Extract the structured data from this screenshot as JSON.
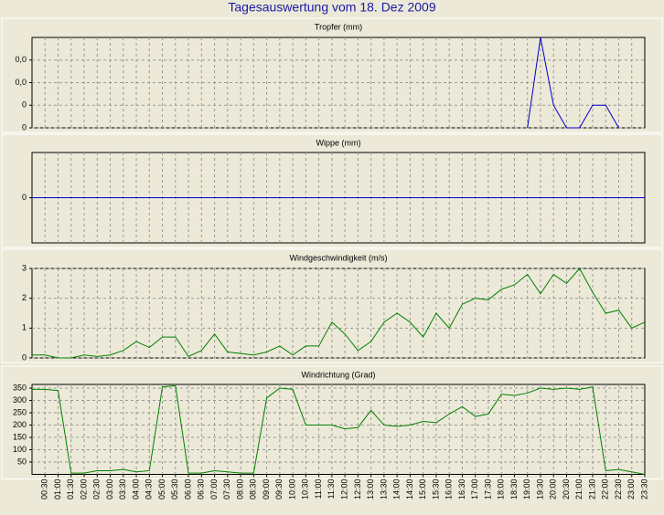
{
  "title": "Tagesauswertung vom 18. Dez 2009",
  "categories": [
    null,
    "00:30",
    "01:00",
    "01:30",
    "02:00",
    "02:30",
    "03:00",
    "03:30",
    "04:00",
    "04:30",
    "05:00",
    "05:30",
    "06:00",
    "06:30",
    "07:00",
    "07:30",
    "08:00",
    "08:30",
    "09:00",
    "09:30",
    "10:00",
    "10:30",
    "11:00",
    "11:30",
    "12:00",
    "12:30",
    "13:00",
    "13:30",
    "14:00",
    "14:30",
    "15:00",
    "15:30",
    "16:00",
    "16:30",
    "17:00",
    "17:30",
    "18:00",
    "18:30",
    "19:00",
    "19:30",
    "20:00",
    "20:30",
    "21:00",
    "21:30",
    "22:00",
    "22:30",
    "23:00",
    "23:30"
  ],
  "chart_data": [
    {
      "type": "line",
      "title": "Tropfer (mm)",
      "color": "#0000cc",
      "grid": true,
      "ylim": [
        0,
        0.04
      ],
      "yticks": [
        {
          "value": 0,
          "label": "0"
        },
        {
          "value": 0.01,
          "label": "0"
        },
        {
          "value": 0.02,
          "label": "0,0"
        },
        {
          "value": 0.03,
          "label": "0,0"
        }
      ],
      "values": [
        null,
        null,
        null,
        null,
        null,
        null,
        null,
        null,
        null,
        null,
        null,
        null,
        null,
        null,
        null,
        null,
        null,
        null,
        null,
        null,
        null,
        null,
        null,
        null,
        null,
        null,
        null,
        null,
        null,
        null,
        null,
        null,
        null,
        null,
        null,
        null,
        null,
        null,
        0,
        0.04,
        0.01,
        0,
        0,
        0.01,
        0.01,
        0,
        null,
        null
      ]
    },
    {
      "type": "line",
      "title": "Wippe (mm)",
      "color": "#0000cc",
      "grid": true,
      "ylim": [
        -1,
        1
      ],
      "yticks": [
        0
      ],
      "values": [
        0,
        0,
        0,
        0,
        0,
        0,
        0,
        0,
        0,
        0,
        0,
        0,
        0,
        0,
        0,
        0,
        0,
        0,
        0,
        0,
        0,
        0,
        0,
        0,
        0,
        0,
        0,
        0,
        0,
        0,
        0,
        0,
        0,
        0,
        0,
        0,
        0,
        0,
        0,
        0,
        0,
        0,
        0,
        0,
        0,
        0,
        0,
        0
      ]
    },
    {
      "type": "line",
      "title": "Windgeschwindigkeit (m/s)",
      "color": "#008000",
      "grid": true,
      "ylim": [
        0,
        3
      ],
      "yticks": [
        0,
        1,
        2,
        3
      ],
      "values": [
        0.1,
        0.1,
        0,
        0,
        0.1,
        0.05,
        0.1,
        0.25,
        0.55,
        0.35,
        0.7,
        0.7,
        0.05,
        0.25,
        0.8,
        0.2,
        0.15,
        0.1,
        0.2,
        0.4,
        0.1,
        0.4,
        0.4,
        1.2,
        0.8,
        0.25,
        0.55,
        1.2,
        1.5,
        1.2,
        0.7,
        1.5,
        1,
        1.8,
        2,
        1.95,
        2.3,
        2.45,
        2.8,
        2.15,
        2.8,
        2.5,
        3,
        2.2,
        1.5,
        1.6,
        1,
        1.2
      ]
    },
    {
      "type": "line",
      "title": "Windrichtung (Grad)",
      "color": "#008000",
      "grid": true,
      "ylim": [
        0,
        365
      ],
      "yticks": [
        50,
        100,
        150,
        200,
        250,
        300,
        350
      ],
      "values": [
        345,
        345,
        340,
        5,
        5,
        15,
        15,
        20,
        10,
        15,
        355,
        360,
        5,
        5,
        15,
        10,
        5,
        5,
        310,
        350,
        345,
        200,
        200,
        200,
        185,
        190,
        260,
        200,
        195,
        200,
        215,
        210,
        245,
        275,
        235,
        245,
        325,
        320,
        330,
        350,
        345,
        350,
        345,
        355,
        15,
        20,
        10,
        0
      ]
    }
  ]
}
